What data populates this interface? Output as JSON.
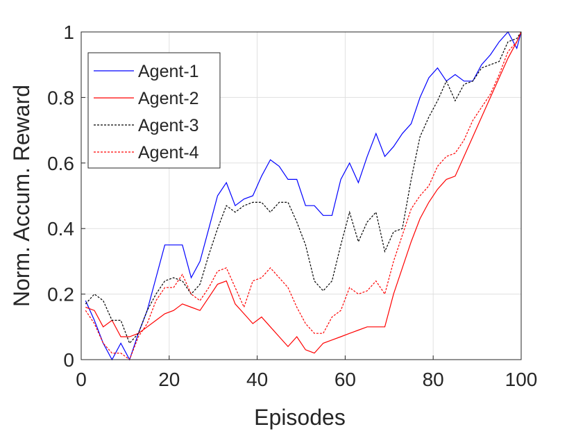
{
  "chart_data": {
    "type": "line",
    "xlabel": "Episodes",
    "ylabel": "Norm. Accum. Reward",
    "x": [
      1,
      3,
      5,
      7,
      9,
      11,
      13,
      15,
      17,
      19,
      21,
      23,
      25,
      27,
      29,
      31,
      33,
      35,
      37,
      39,
      41,
      43,
      45,
      47,
      49,
      51,
      53,
      55,
      57,
      59,
      61,
      63,
      65,
      67,
      69,
      71,
      73,
      75,
      77,
      79,
      81,
      83,
      85,
      87,
      89,
      91,
      93,
      95,
      97,
      99,
      100
    ],
    "series": [
      {
        "name": "Agent-1",
        "color": "#0000ff",
        "dash": false,
        "values": [
          0.18,
          0.12,
          0.05,
          0.0,
          0.05,
          0.0,
          0.08,
          0.15,
          0.25,
          0.35,
          0.35,
          0.35,
          0.25,
          0.3,
          0.4,
          0.5,
          0.54,
          0.47,
          0.49,
          0.5,
          0.56,
          0.61,
          0.59,
          0.55,
          0.55,
          0.47,
          0.47,
          0.44,
          0.44,
          0.55,
          0.6,
          0.54,
          0.62,
          0.69,
          0.62,
          0.65,
          0.69,
          0.72,
          0.8,
          0.86,
          0.89,
          0.85,
          0.87,
          0.85,
          0.85,
          0.9,
          0.93,
          0.97,
          1.0,
          0.95,
          1.0
        ]
      },
      {
        "name": "Agent-2",
        "color": "#ff0000",
        "dash": false,
        "values": [
          0.16,
          0.15,
          0.1,
          0.12,
          0.07,
          0.07,
          0.08,
          0.1,
          0.12,
          0.14,
          0.15,
          0.17,
          0.16,
          0.15,
          0.19,
          0.23,
          0.24,
          0.17,
          0.14,
          0.11,
          0.13,
          0.1,
          0.07,
          0.04,
          0.07,
          0.03,
          0.02,
          0.05,
          0.06,
          0.07,
          0.08,
          0.09,
          0.1,
          0.1,
          0.1,
          0.2,
          0.28,
          0.36,
          0.43,
          0.48,
          0.52,
          0.55,
          0.56,
          0.62,
          0.68,
          0.74,
          0.8,
          0.86,
          0.92,
          0.97,
          1.0
        ]
      },
      {
        "name": "Agent-3",
        "color": "#000000",
        "dash": true,
        "values": [
          0.17,
          0.2,
          0.18,
          0.12,
          0.12,
          0.05,
          0.08,
          0.15,
          0.2,
          0.24,
          0.25,
          0.24,
          0.2,
          0.23,
          0.32,
          0.4,
          0.47,
          0.45,
          0.47,
          0.48,
          0.48,
          0.45,
          0.48,
          0.48,
          0.42,
          0.35,
          0.24,
          0.21,
          0.24,
          0.35,
          0.45,
          0.36,
          0.42,
          0.45,
          0.33,
          0.39,
          0.4,
          0.55,
          0.68,
          0.74,
          0.79,
          0.85,
          0.79,
          0.84,
          0.85,
          0.89,
          0.9,
          0.91,
          0.97,
          0.98,
          1.0
        ]
      },
      {
        "name": "Agent-4",
        "color": "#ff0000",
        "dash": true,
        "values": [
          0.15,
          0.11,
          0.05,
          0.02,
          0.02,
          0.0,
          0.07,
          0.11,
          0.18,
          0.22,
          0.22,
          0.26,
          0.2,
          0.18,
          0.22,
          0.27,
          0.28,
          0.22,
          0.16,
          0.24,
          0.25,
          0.28,
          0.25,
          0.22,
          0.16,
          0.11,
          0.08,
          0.08,
          0.13,
          0.15,
          0.22,
          0.2,
          0.21,
          0.24,
          0.2,
          0.3,
          0.38,
          0.46,
          0.5,
          0.53,
          0.59,
          0.62,
          0.63,
          0.67,
          0.73,
          0.77,
          0.81,
          0.87,
          0.94,
          0.97,
          1.0
        ]
      }
    ],
    "xlim": [
      0,
      100
    ],
    "xticks": [
      0,
      20,
      40,
      60,
      80,
      100
    ],
    "ylim": [
      0,
      1
    ],
    "yticks": [
      0,
      0.2,
      0.4,
      0.6,
      0.8,
      1
    ],
    "grid": true,
    "legend": "upper-left"
  }
}
